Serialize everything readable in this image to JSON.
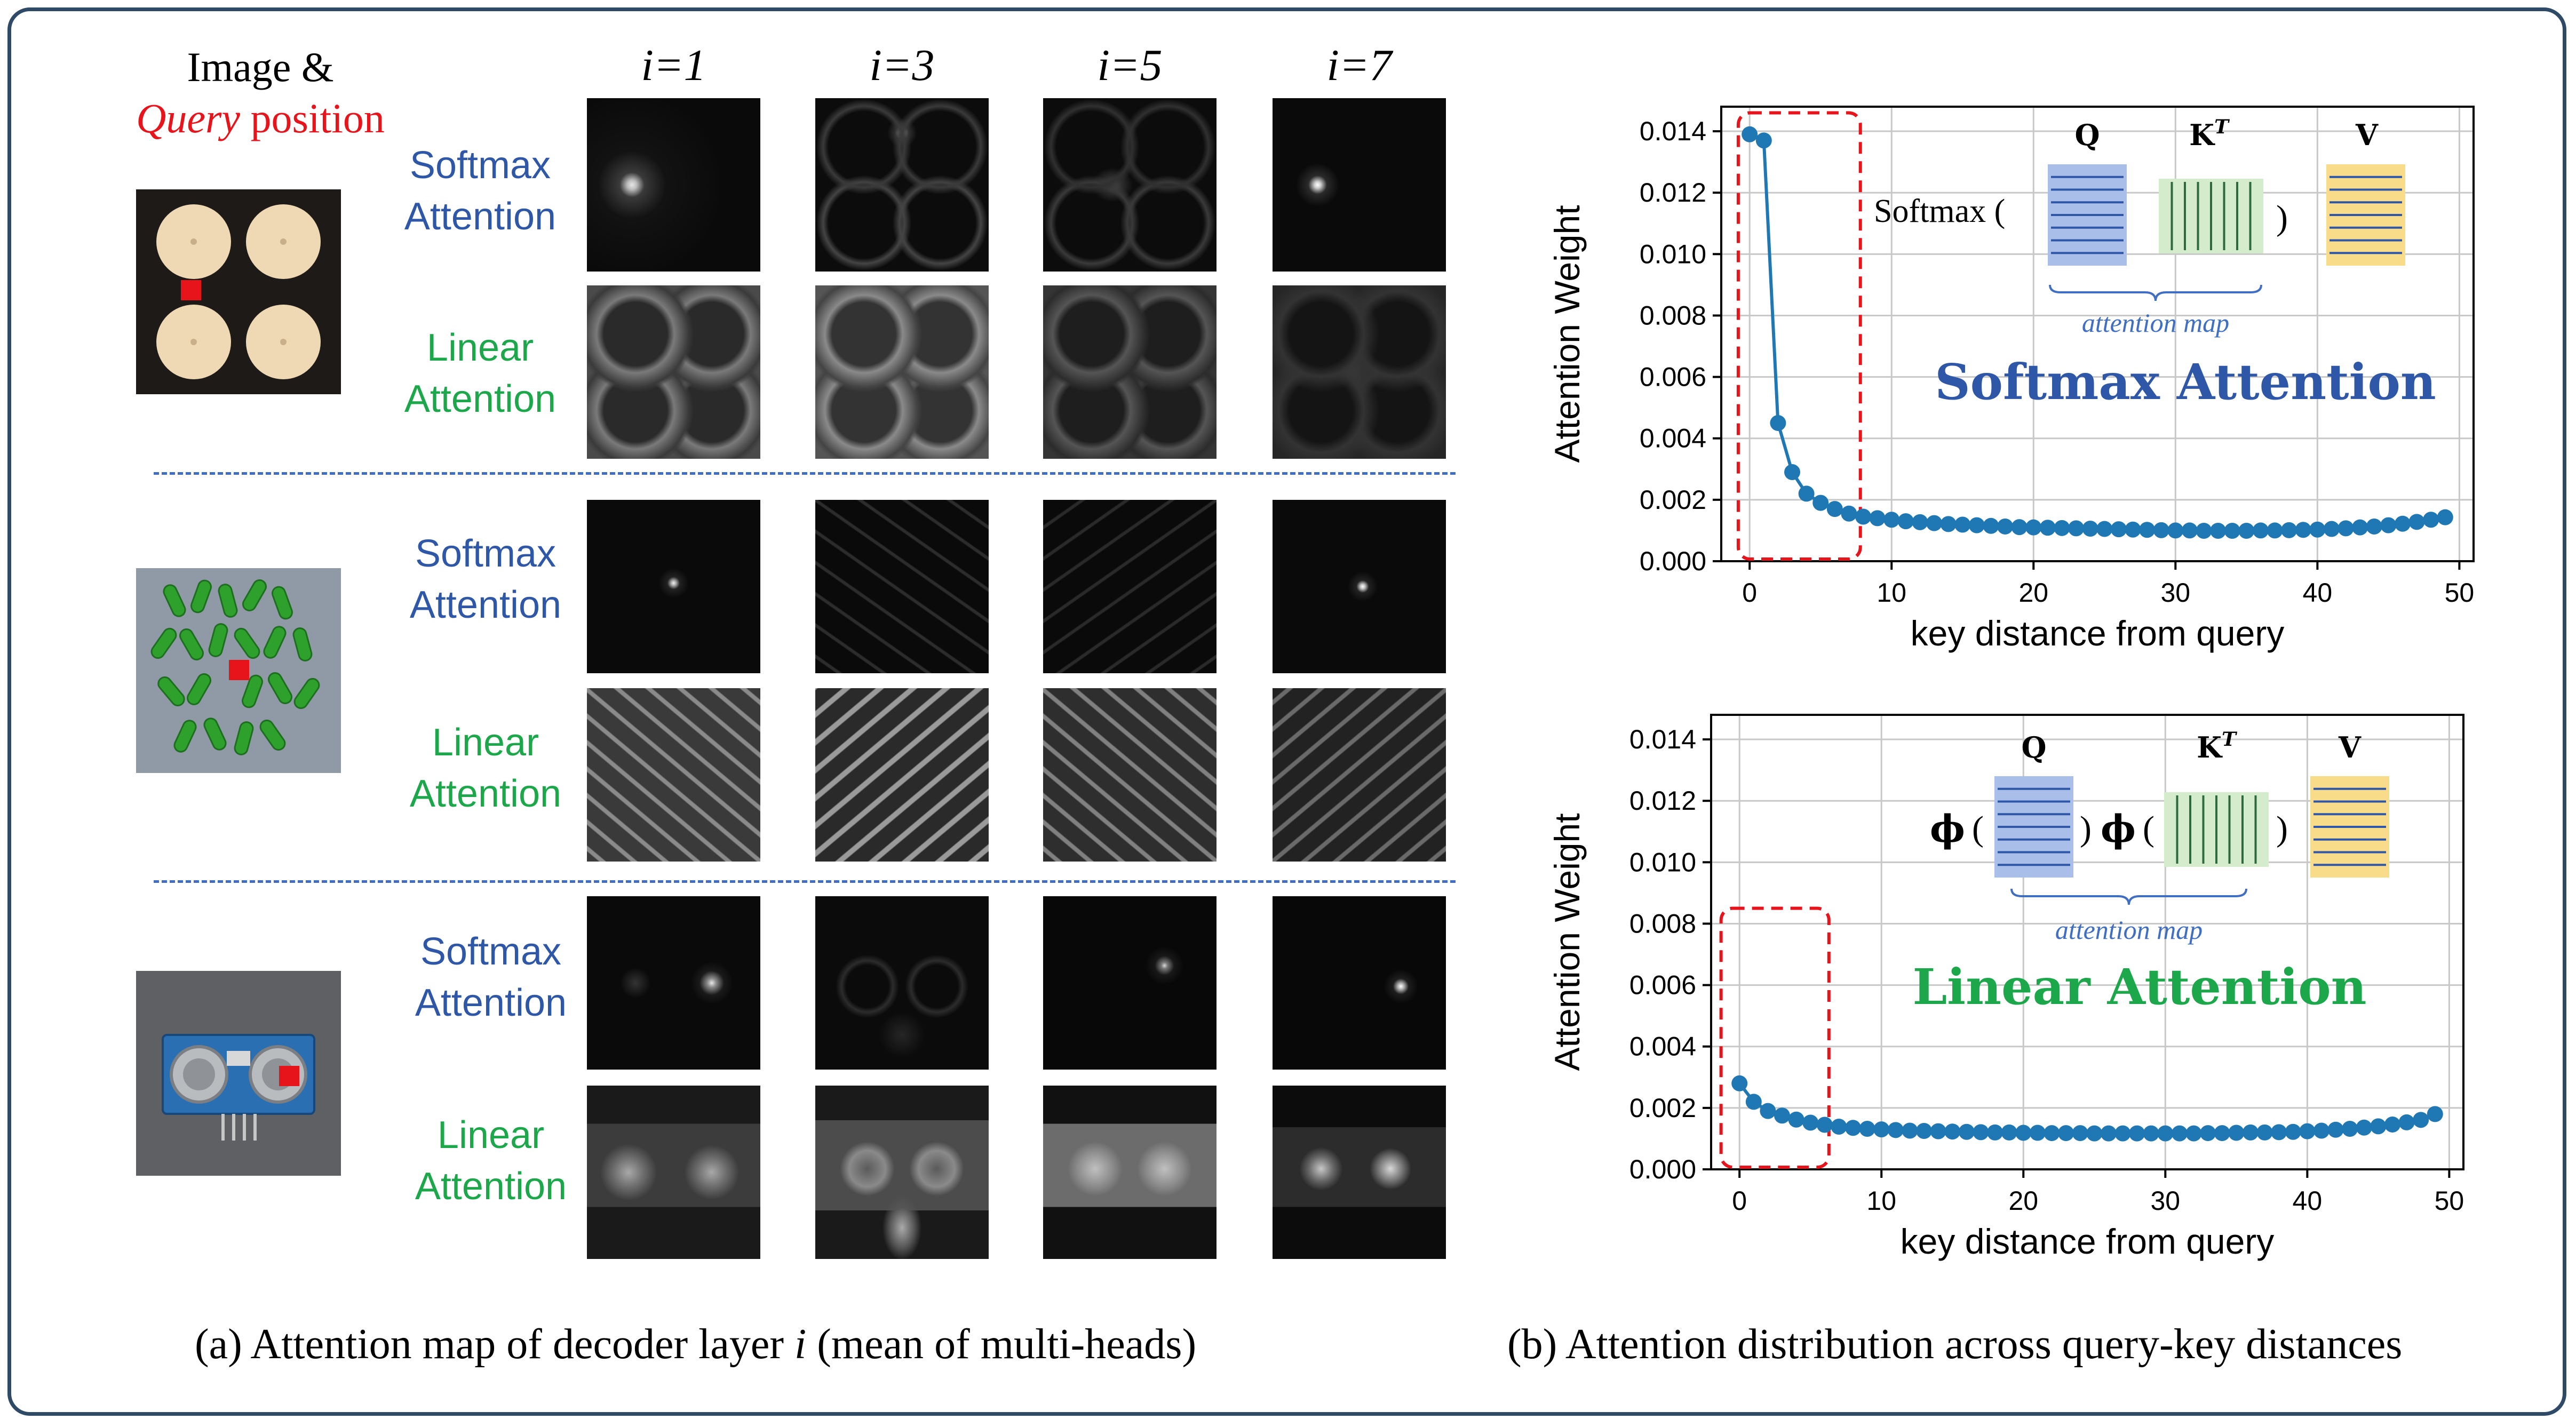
{
  "panel_a": {
    "header_line1": "Image &",
    "header_query": "Query",
    "header_position": " position",
    "columns": [
      "i=1",
      "i=3",
      "i=5",
      "i=7"
    ],
    "label_softmax_line1": "Softmax",
    "label_linear_line1": "Linear",
    "label_line2": "Attention",
    "caption_prefix": "(a) Attention map of decoder layer ",
    "caption_var": "i",
    "caption_suffix": " (mean of  multi-heads)"
  },
  "panel_b": {
    "caption": "(b) Attention distribution across query-key distances"
  },
  "colors": {
    "softmax_blue": "#2f57a8",
    "linear_green": "#1ca84a",
    "series": "#1f77b4",
    "query_marker": "#e8141c",
    "frame": "#2e4a66"
  },
  "chart_data": [
    {
      "type": "line",
      "title": "Softmax Attention",
      "xlabel": "key distance from query",
      "ylabel": "Attention Weight",
      "xlim": [
        -2,
        51
      ],
      "ylim": [
        0,
        0.0148
      ],
      "xticks": [
        0,
        10,
        20,
        30,
        40,
        50
      ],
      "yticks": [
        "0.000",
        "0.002",
        "0.004",
        "0.006",
        "0.008",
        "0.010",
        "0.012",
        "0.014"
      ],
      "grid": true,
      "highlight_box": {
        "x_range": [
          -0.8,
          7.8
        ],
        "y_range": [
          0,
          0.0146
        ]
      },
      "formula": {
        "prefix": "Softmax (",
        "close": ")",
        "q": "Q",
        "k": "K",
        "k_sup": "T",
        "v": "V",
        "brace_label": "attention map"
      },
      "x": [
        0,
        1,
        2,
        3,
        4,
        5,
        6,
        7,
        8,
        9,
        10,
        11,
        12,
        13,
        14,
        15,
        16,
        17,
        18,
        19,
        20,
        21,
        22,
        23,
        24,
        25,
        26,
        27,
        28,
        29,
        30,
        31,
        32,
        33,
        34,
        35,
        36,
        37,
        38,
        39,
        40,
        41,
        42,
        43,
        44,
        45,
        46,
        47,
        48,
        49
      ],
      "values": [
        0.0139,
        0.0137,
        0.0045,
        0.0029,
        0.0022,
        0.0019,
        0.0017,
        0.00155,
        0.00145,
        0.0014,
        0.00135,
        0.0013,
        0.00127,
        0.00124,
        0.00121,
        0.00119,
        0.00117,
        0.00115,
        0.00113,
        0.00111,
        0.0011,
        0.00109,
        0.00108,
        0.00107,
        0.00106,
        0.00105,
        0.00104,
        0.00103,
        0.00102,
        0.00101,
        0.001,
        0.001,
        0.00099,
        0.00099,
        0.00099,
        0.00099,
        0.001,
        0.001,
        0.00101,
        0.00102,
        0.00103,
        0.00105,
        0.00107,
        0.0011,
        0.00113,
        0.00117,
        0.00122,
        0.00128,
        0.00135,
        0.00143
      ]
    },
    {
      "type": "line",
      "title": "Linear Attention",
      "xlabel": "key distance from query",
      "ylabel": "Attention Weight",
      "xlim": [
        -2,
        51
      ],
      "ylim": [
        0,
        0.0148
      ],
      "xticks": [
        0,
        10,
        20,
        30,
        40,
        50
      ],
      "yticks": [
        "0.000",
        "0.002",
        "0.004",
        "0.006",
        "0.008",
        "0.010",
        "0.012",
        "0.014"
      ],
      "grid": true,
      "highlight_box": {
        "x_range": [
          -1.3,
          6.3
        ],
        "y_range": [
          0,
          0.0085
        ]
      },
      "formula": {
        "phi": "ϕ",
        "open": "(",
        "close": ")",
        "q": "Q",
        "k": "K",
        "k_sup": "T",
        "v": "V",
        "brace_label": "attention map"
      },
      "x": [
        0,
        1,
        2,
        3,
        4,
        5,
        6,
        7,
        8,
        9,
        10,
        11,
        12,
        13,
        14,
        15,
        16,
        17,
        18,
        19,
        20,
        21,
        22,
        23,
        24,
        25,
        26,
        27,
        28,
        29,
        30,
        31,
        32,
        33,
        34,
        35,
        36,
        37,
        38,
        39,
        40,
        41,
        42,
        43,
        44,
        45,
        46,
        47,
        48,
        49
      ],
      "values": [
        0.0028,
        0.0022,
        0.0019,
        0.00175,
        0.00162,
        0.00152,
        0.00145,
        0.00139,
        0.00135,
        0.00132,
        0.0013,
        0.00128,
        0.00126,
        0.00125,
        0.00124,
        0.00123,
        0.00122,
        0.00121,
        0.0012,
        0.0012,
        0.00119,
        0.00119,
        0.00118,
        0.00118,
        0.00118,
        0.00117,
        0.00117,
        0.00117,
        0.00117,
        0.00117,
        0.00117,
        0.00117,
        0.00117,
        0.00118,
        0.00118,
        0.00119,
        0.0012,
        0.0012,
        0.00121,
        0.00122,
        0.00124,
        0.00126,
        0.00129,
        0.00132,
        0.00136,
        0.0014,
        0.00146,
        0.00153,
        0.00161,
        0.0018
      ]
    }
  ]
}
